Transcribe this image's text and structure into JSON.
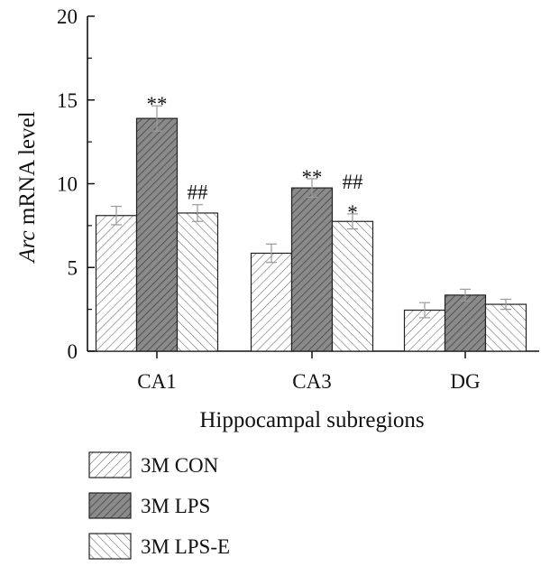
{
  "chart_data": {
    "type": "bar",
    "categories": [
      "CA1",
      "CA3",
      "DG"
    ],
    "xlabel": "Hippocampal subregions",
    "ylabel_italic": "Arc",
    "ylabel_rest": " mRNA level",
    "ylim": [
      0,
      20
    ],
    "yticks": [
      "0",
      "5",
      "10",
      "15",
      "20"
    ],
    "grid": false,
    "legend_position": "bottom-left",
    "series": [
      {
        "name": "3M CON",
        "pattern": "hatch-light",
        "values": [
          8.1,
          5.85,
          2.45
        ],
        "errors": [
          0.55,
          0.55,
          0.45
        ],
        "annotations": [
          "",
          "",
          ""
        ]
      },
      {
        "name": "3M LPS",
        "pattern": "hatch-dark",
        "values": [
          13.9,
          9.75,
          3.35
        ],
        "errors": [
          0.75,
          0.55,
          0.35
        ],
        "annotations": [
          "**",
          "**",
          ""
        ]
      },
      {
        "name": "3M LPS-E",
        "pattern": "backhatch-light",
        "values": [
          8.25,
          7.75,
          2.8
        ],
        "errors": [
          0.5,
          0.45,
          0.3
        ],
        "annotations": [
          "##",
          "*",
          ""
        ],
        "annotations2": [
          "",
          "##",
          ""
        ]
      }
    ],
    "colors": {
      "light_fill": "#ffffff",
      "dark_fill": "#8a8a8a",
      "hatch_stroke": "#555555",
      "error_bar": "#9a9a9a"
    }
  }
}
